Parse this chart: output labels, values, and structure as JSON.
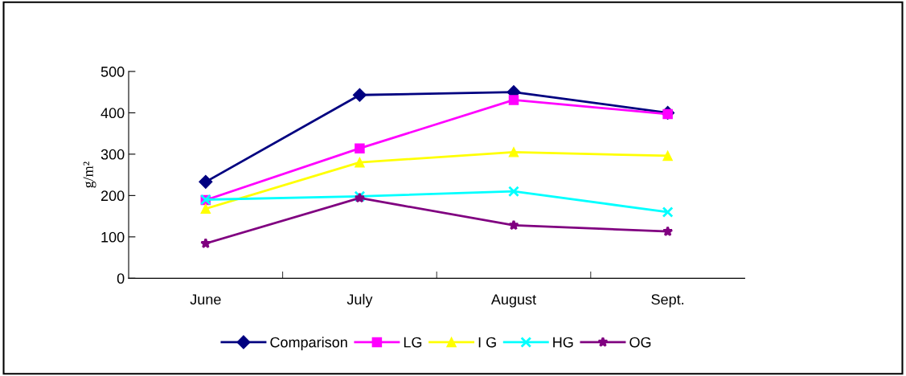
{
  "chart_data": {
    "type": "line",
    "ylabel": "g/m²",
    "categories": [
      "June",
      "July",
      "August",
      "Sept."
    ],
    "ylim": [
      0,
      500
    ],
    "yticks": [
      0,
      100,
      200,
      300,
      400,
      500
    ],
    "grid": false,
    "legend": "bottom",
    "line_style": "solid",
    "series": [
      {
        "name": "Comparison",
        "color": "#000080",
        "marker": "diamond",
        "values": [
          233,
          443,
          450,
          400
        ]
      },
      {
        "name": "LG",
        "color": "#ff00ff",
        "marker": "square",
        "values": [
          189,
          314,
          431,
          397
        ]
      },
      {
        "name": "I G",
        "color": "#ffff00",
        "marker": "triangle",
        "values": [
          168,
          280,
          305,
          296
        ]
      },
      {
        "name": "HG",
        "color": "#00ffff",
        "marker": "cross",
        "values": [
          190,
          198,
          210,
          160
        ]
      },
      {
        "name": "OG",
        "color": "#800080",
        "marker": "star",
        "values": [
          84,
          194,
          128,
          113
        ]
      }
    ]
  }
}
